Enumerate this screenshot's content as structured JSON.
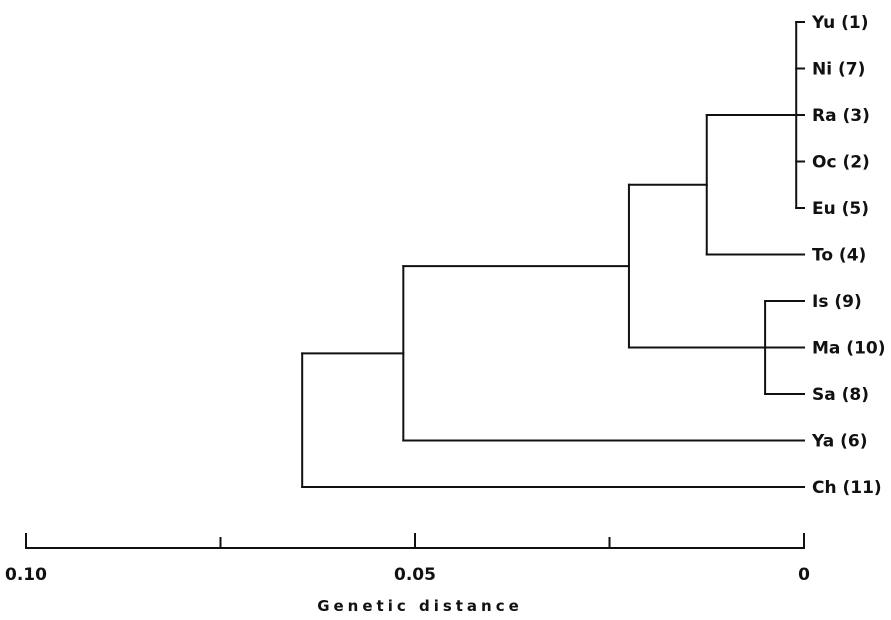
{
  "diagram": {
    "type": "dendrogram",
    "leaves": [
      "Yu (1)",
      "Ni (7)",
      "Ra (3)",
      "Oc (2)",
      "Eu (5)",
      "To (4)",
      "Is (9)",
      "Ma (10)",
      "Sa (8)",
      "Ya (6)",
      "Ch (11)"
    ],
    "merges": [
      {
        "members": [
          "Yu (1)",
          "Ni (7)",
          "Ra (3)",
          "Oc (2)",
          "Eu (5)"
        ],
        "distance": 0.001
      },
      {
        "members": [
          "Is (9)",
          "Ma (10)",
          "Sa (8)"
        ],
        "distance": 0.005
      },
      {
        "members": [
          "Yu (1)",
          "Ni (7)",
          "Ra (3)",
          "Oc (2)",
          "Eu (5)",
          "To (4)"
        ],
        "distance": 0.0125
      },
      {
        "members": [
          "Yu (1)",
          "Ni (7)",
          "Ra (3)",
          "Oc (2)",
          "Eu (5)",
          "To (4)",
          "Is (9)",
          "Ma (10)",
          "Sa (8)"
        ],
        "distance": 0.0225
      },
      {
        "members": [
          "Yu (1)",
          "Ni (7)",
          "Ra (3)",
          "Oc (2)",
          "Eu (5)",
          "To (4)",
          "Is (9)",
          "Ma (10)",
          "Sa (8)",
          "Ya (6)"
        ],
        "distance": 0.0515
      },
      {
        "members": [
          "Yu (1)",
          "Ni (7)",
          "Ra (3)",
          "Oc (2)",
          "Eu (5)",
          "To (4)",
          "Is (9)",
          "Ma (10)",
          "Sa (8)",
          "Ya (6)",
          "Ch (11)"
        ],
        "distance": 0.0645
      }
    ],
    "axis": {
      "label": "Genetic distance",
      "range": [
        0.1,
        0
      ],
      "ticks": [
        0.1,
        0.075,
        0.05,
        0.025,
        0
      ],
      "tick_labels": [
        {
          "value": 0.1,
          "text": "0.10"
        },
        {
          "value": 0.05,
          "text": "0.05"
        },
        {
          "value": 0,
          "text": "0"
        }
      ]
    }
  }
}
